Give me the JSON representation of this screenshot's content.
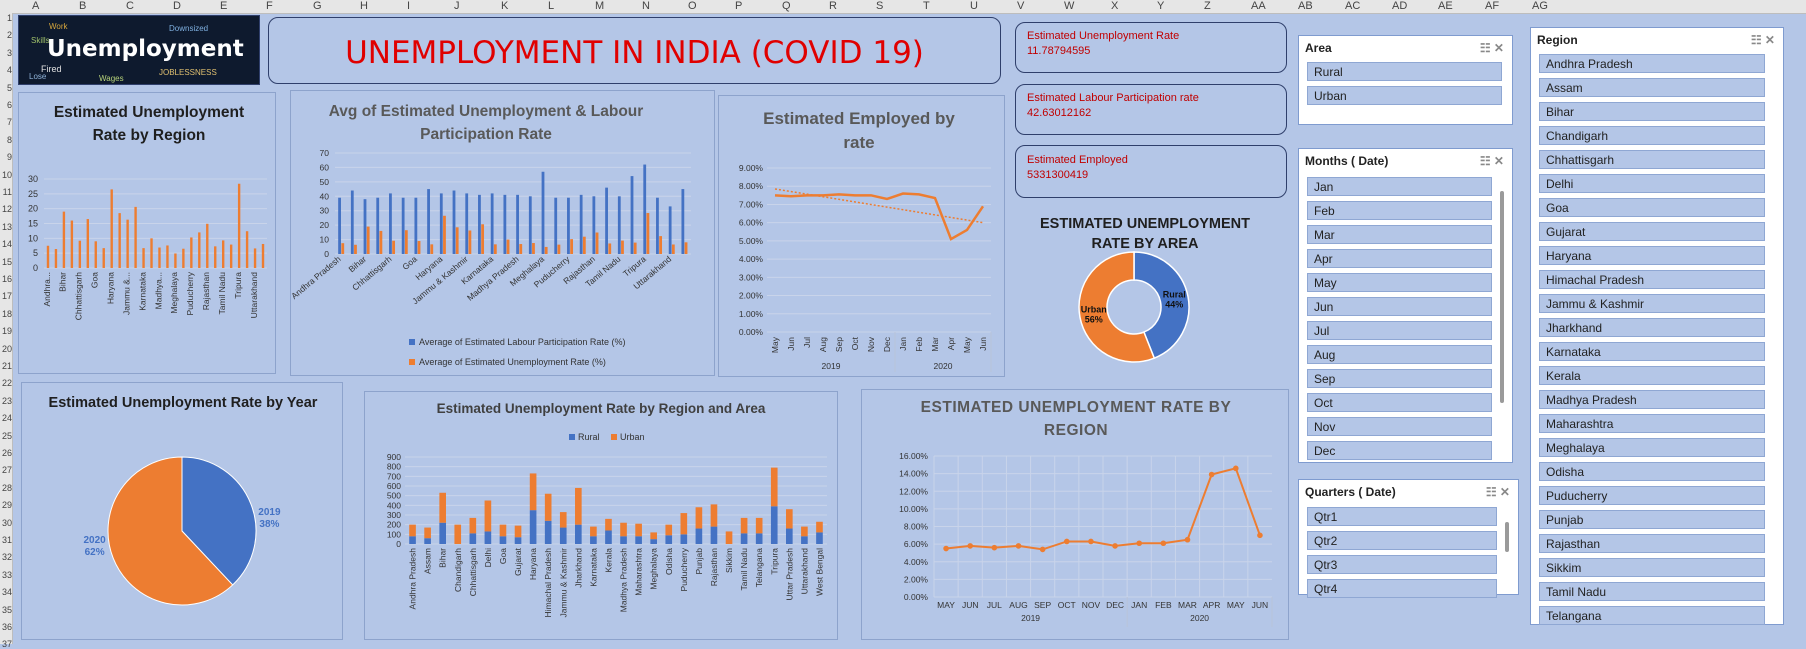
{
  "header": {
    "logo_word": "Unemployment",
    "logo_small": [
      "JOBLESSNESS",
      "Downsized",
      "Fired",
      "Skills",
      "Work",
      "Lose",
      "Wages"
    ],
    "title": "UNEMPLOYMENT  IN INDIA (COVID 19)"
  },
  "sheet": {
    "columns": [
      "A",
      "B",
      "C",
      "D",
      "E",
      "F",
      "G",
      "H",
      "I",
      "J",
      "K",
      "L",
      "M",
      "N",
      "O",
      "P",
      "Q",
      "R",
      "S",
      "T",
      "U",
      "V",
      "W",
      "X",
      "Y",
      "Z",
      "AA",
      "AB",
      "AC",
      "AD",
      "AE",
      "AF",
      "AG"
    ],
    "rows": [
      "1",
      "2",
      "3",
      "4",
      "5",
      "6",
      "7",
      "8",
      "9",
      "10",
      "11",
      "12",
      "13",
      "14",
      "15",
      "16",
      "17",
      "18",
      "19",
      "20",
      "21",
      "22",
      "23",
      "24",
      "25",
      "26",
      "27",
      "28",
      "29",
      "30",
      "31",
      "32",
      "33",
      "34",
      "35",
      "36",
      "37"
    ]
  },
  "kpis": [
    {
      "label": "Estimated Unemployment Rate",
      "value": "11.78794595"
    },
    {
      "label": "Estimated Labour Participation rate",
      "value": "42.63012162"
    },
    {
      "label": "Estimated Employed",
      "value": "5331300419"
    }
  ],
  "colors": {
    "blue": "#4472c4",
    "orange": "#ed7d31",
    "red": "#e00000",
    "kpi_red": "#c00000"
  },
  "chart_data": [
    {
      "type": "bar",
      "title": "Estimated Unemployment Rate by Region",
      "ylim": [
        0,
        30
      ],
      "yticks": [
        0,
        5,
        10,
        15,
        20,
        25,
        30
      ],
      "categories": [
        "Andhra Pradesh",
        "Assam",
        "Bihar",
        "Chandigarh",
        "Chhattisgarh",
        "Delhi",
        "Goa",
        "Gujarat",
        "Haryana",
        "Himachal Pradesh",
        "Jammu & Kashmir",
        "Jharkhand",
        "Karnataka",
        "Kerala",
        "Madhya Pradesh",
        "Maharashtra",
        "Meghalaya",
        "Odisha",
        "Puducherry",
        "Punjab",
        "Rajasthan",
        "Sikkim",
        "Tamil Nadu",
        "Telangana",
        "Tripura",
        "Uttar Pradesh",
        "Uttarakhand",
        "West Bengal"
      ],
      "tick_labels": [
        "Andhra...",
        "",
        "Bihar",
        "",
        "Chhattisgarh",
        "",
        "Goa",
        "",
        "Haryana",
        "",
        "Jammu &...",
        "",
        "Karnataka",
        "",
        "Madhya...",
        "",
        "Meghalaya",
        "",
        "Puducherry",
        "",
        "Rajasthan",
        "",
        "Tamil Nadu",
        "",
        "Tripura",
        "",
        "Uttarakhand",
        ""
      ],
      "values": [
        7.5,
        6.4,
        19.0,
        16.0,
        9.2,
        16.5,
        9.0,
        6.7,
        26.5,
        18.5,
        16.3,
        20.6,
        6.7,
        10.0,
        6.9,
        7.6,
        4.9,
        6.5,
        10.3,
        12.0,
        14.9,
        7.3,
        9.3,
        7.9,
        28.4,
        12.4,
        6.6,
        8.1
      ],
      "series_color": "#ed7d31"
    },
    {
      "type": "bar",
      "title": "Avg of Estimated Unemployment & Labour Participation Rate",
      "ylim": [
        0,
        70
      ],
      "yticks": [
        0,
        10,
        20,
        30,
        40,
        50,
        60,
        70
      ],
      "categories": [
        "Andhra Pradesh",
        "Assam",
        "Bihar",
        "Chandigarh",
        "Chhattisgarh",
        "Delhi",
        "Goa",
        "Gujarat",
        "Haryana",
        "Himachal Pradesh",
        "Jammu & Kashmir",
        "Jharkhand",
        "Karnataka",
        "Kerala",
        "Madhya Pradesh",
        "Maharashtra",
        "Meghalaya",
        "Odisha",
        "Puducherry",
        "Punjab",
        "Rajasthan",
        "Sikkim",
        "Tamil Nadu",
        "Telangana",
        "Tripura",
        "Uttar Pradesh",
        "Uttarakhand",
        "West Bengal"
      ],
      "tick_labels": [
        "Andhra Pradesh",
        "",
        "Bihar",
        "",
        "Chhattisgarh",
        "",
        "Goa",
        "",
        "Haryana",
        "",
        "Jammu & Kashmir",
        "",
        "Karnataka",
        "",
        "Madhya Pradesh",
        "",
        "Meghalaya",
        "",
        "Puducherry",
        "",
        "Rajasthan",
        "",
        "Tamil Nadu",
        "",
        "Tripura",
        "",
        "Uttarakhand",
        ""
      ],
      "series": [
        {
          "name": "Average of  Estimated Labour Participation Rate (%)",
          "color": "#4472c4",
          "values": [
            39,
            44,
            38,
            39,
            42,
            39,
            39,
            45,
            42,
            44,
            42,
            41,
            42,
            41,
            41,
            40,
            57,
            39,
            39,
            41,
            40,
            46,
            40,
            54,
            62,
            39,
            33,
            45
          ]
        },
        {
          "name": "Average of  Estimated Unemployment Rate (%)",
          "color": "#ed7d31",
          "values": [
            7.5,
            6.4,
            19.0,
            16.0,
            9.2,
            16.5,
            9.0,
            6.7,
            26.5,
            18.5,
            16.3,
            20.6,
            6.7,
            10.0,
            6.9,
            7.6,
            4.9,
            6.5,
            10.3,
            12.0,
            14.9,
            7.3,
            9.3,
            7.9,
            28.4,
            12.4,
            6.6,
            8.1
          ]
        }
      ]
    },
    {
      "type": "line",
      "title": "Estimated Employed by rate",
      "ylim": [
        0,
        9
      ],
      "yticks": [
        "0.00%",
        "1.00%",
        "2.00%",
        "3.00%",
        "4.00%",
        "5.00%",
        "6.00%",
        "7.00%",
        "8.00%",
        "9.00%"
      ],
      "x": [
        "May",
        "Jun",
        "Jul",
        "Aug",
        "Sep",
        "Oct",
        "Nov",
        "Dec",
        "Jan",
        "Feb",
        "Mar",
        "Apr",
        "May",
        "Jun"
      ],
      "year_groups": [
        {
          "label": "2019",
          "span": 8
        },
        {
          "label": "2020",
          "span": 6
        }
      ],
      "values": [
        7.5,
        7.45,
        7.5,
        7.5,
        7.55,
        7.5,
        7.5,
        7.3,
        7.6,
        7.55,
        7.35,
        5.1,
        5.6,
        6.9
      ],
      "trendline": [
        7.85,
        6.0
      ],
      "series_color": "#ed7d31"
    },
    {
      "type": "pie",
      "title": "ESTIMATED UNEMPLOYMENT RATE BY AREA",
      "donut": true,
      "slices": [
        {
          "label": "Rural",
          "pct_label": "44%",
          "value": 44,
          "color": "#4472c4"
        },
        {
          "label": "Urban",
          "pct_label": "56%",
          "value": 56,
          "color": "#ed7d31"
        }
      ]
    },
    {
      "type": "pie",
      "title": "Estimated Unemployment Rate by Year",
      "slices": [
        {
          "label": "2019",
          "pct_label": "38%",
          "value": 38,
          "color": "#4472c4"
        },
        {
          "label": "2020",
          "pct_label": "62%",
          "value": 62,
          "color": "#ed7d31"
        }
      ]
    },
    {
      "type": "bar",
      "stacked": true,
      "title": "Estimated Unemployment Rate by Region and Area",
      "ylim": [
        0,
        900
      ],
      "yticks": [
        0,
        100,
        200,
        300,
        400,
        500,
        600,
        700,
        800,
        900
      ],
      "categories": [
        "Andhra Pradesh",
        "Assam",
        "Bihar",
        "Chandigarh",
        "Chhattisgarh",
        "Delhi",
        "Goa",
        "Gujarat",
        "Haryana",
        "Himachal Pradesh",
        "Jammu & Kashmir",
        "Jharkhand",
        "Karnataka",
        "Kerala",
        "Madhya Pradesh",
        "Maharashtra",
        "Meghalaya",
        "Odisha",
        "Puducherry",
        "Punjab",
        "Rajasthan",
        "Sikkim",
        "Tamil Nadu",
        "Telangana",
        "Tripura",
        "Uttar Pradesh",
        "Uttarakhand",
        "West Bengal"
      ],
      "series": [
        {
          "name": "Rural",
          "color": "#4472c4",
          "values": [
            80,
            60,
            220,
            0,
            110,
            130,
            80,
            70,
            350,
            240,
            170,
            200,
            80,
            140,
            80,
            80,
            50,
            90,
            100,
            160,
            180,
            0,
            110,
            110,
            390,
            160,
            80,
            120
          ]
        },
        {
          "name": "Urban",
          "color": "#ed7d31",
          "values": [
            120,
            110,
            310,
            200,
            160,
            320,
            120,
            120,
            380,
            280,
            160,
            380,
            100,
            120,
            140,
            130,
            70,
            110,
            220,
            220,
            230,
            130,
            160,
            160,
            400,
            200,
            100,
            110
          ]
        }
      ]
    },
    {
      "type": "line",
      "title": "ESTIMATED UNEMPLOYMENT RATE BY REGION",
      "ylim": [
        0,
        16
      ],
      "yticks": [
        "0.00%",
        "2.00%",
        "4.00%",
        "6.00%",
        "8.00%",
        "10.00%",
        "12.00%",
        "14.00%",
        "16.00%"
      ],
      "x": [
        "MAY",
        "JUN",
        "JUL",
        "AUG",
        "SEP",
        "OCT",
        "NOV",
        "DEC",
        "JAN",
        "FEB",
        "MAR",
        "APR",
        "MAY",
        "JUN"
      ],
      "year_groups": [
        {
          "label": "2019",
          "span": 8
        },
        {
          "label": "2020",
          "span": 6
        }
      ],
      "values": [
        5.5,
        5.8,
        5.6,
        5.8,
        5.4,
        6.3,
        6.3,
        5.8,
        6.1,
        6.1,
        6.5,
        13.9,
        14.6,
        7.0
      ],
      "series_color": "#ed7d31"
    }
  ],
  "slicers": {
    "area": {
      "title": "Area",
      "items": [
        "Rural",
        "Urban"
      ]
    },
    "months": {
      "title": "Months ( Date)",
      "items": [
        "Jan",
        "Feb",
        "Mar",
        "Apr",
        "May",
        "Jun",
        "Jul",
        "Aug",
        "Sep",
        "Oct",
        "Nov",
        "Dec"
      ]
    },
    "quarters": {
      "title": "Quarters ( Date)",
      "items": [
        "Qtr1",
        "Qtr2",
        "Qtr3",
        "Qtr4"
      ]
    },
    "region": {
      "title": "Region",
      "items": [
        "Andhra Pradesh",
        "Assam",
        "Bihar",
        "Chandigarh",
        "Chhattisgarh",
        "Delhi",
        "Goa",
        "Gujarat",
        "Haryana",
        "Himachal Pradesh",
        "Jammu & Kashmir",
        "Jharkhand",
        "Karnataka",
        "Kerala",
        "Madhya Pradesh",
        "Maharashtra",
        "Meghalaya",
        "Odisha",
        "Puducherry",
        "Punjab",
        "Rajasthan",
        "Sikkim",
        "Tamil Nadu",
        "Telangana"
      ]
    }
  }
}
